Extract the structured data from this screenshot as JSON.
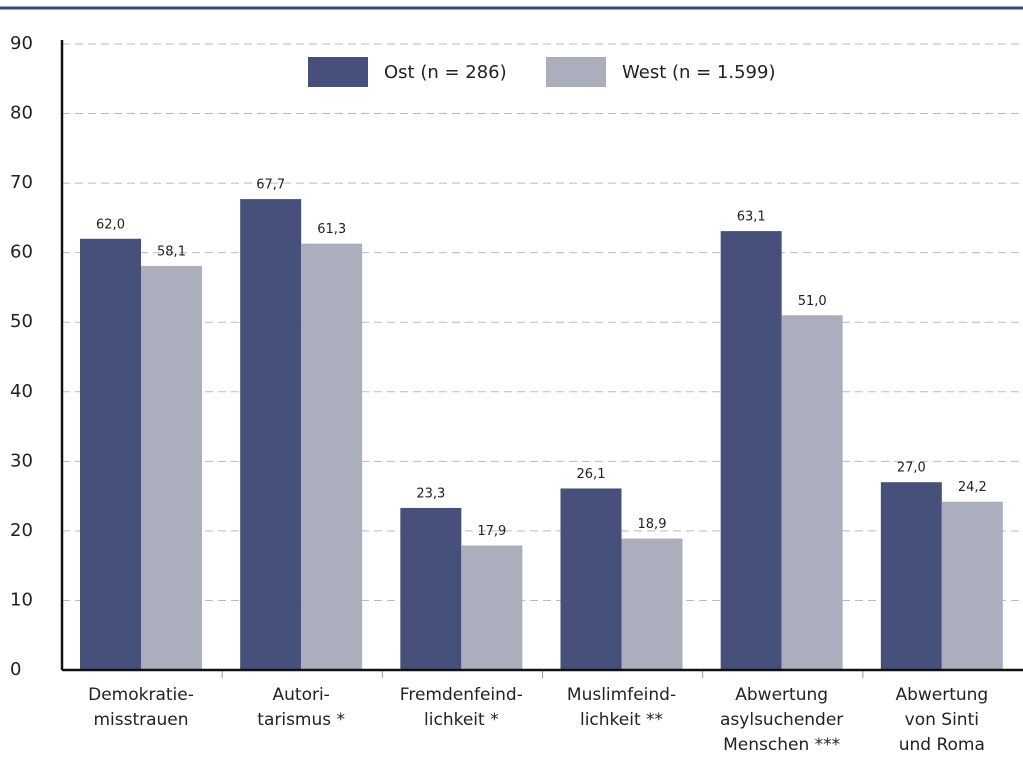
{
  "chart_data": {
    "type": "bar",
    "categories": [
      [
        "Demokratie-",
        "misstrauen"
      ],
      [
        "Autori-",
        "tarismus *"
      ],
      [
        "Fremdenfeind-",
        "lichkeit *"
      ],
      [
        "Muslimfeind-",
        "lichkeit **"
      ],
      [
        "Abwertung",
        "asylsuchender",
        "Menschen ***"
      ],
      [
        "Abwertung",
        "von Sinti",
        "und Roma"
      ]
    ],
    "series": [
      {
        "name": "Ost (n = 286)",
        "color": "#46507a",
        "values": [
          62.0,
          67.7,
          23.3,
          26.1,
          63.1,
          27.0
        ],
        "value_labels": [
          "62,0",
          "67,7",
          "23,3",
          "26,1",
          "63,1",
          "27,0"
        ]
      },
      {
        "name": "West (n = 1.599)",
        "color": "#abafbd",
        "values": [
          58.1,
          61.3,
          17.9,
          18.9,
          51.0,
          24.2
        ],
        "value_labels": [
          "58,1",
          "61,3",
          "17,9",
          "18,9",
          "51,0",
          "24,2"
        ]
      }
    ],
    "ylim": [
      0,
      90
    ],
    "yticks": [
      0,
      10,
      20,
      30,
      40,
      50,
      60,
      70,
      80,
      90
    ],
    "grid": true,
    "legend": "top"
  }
}
